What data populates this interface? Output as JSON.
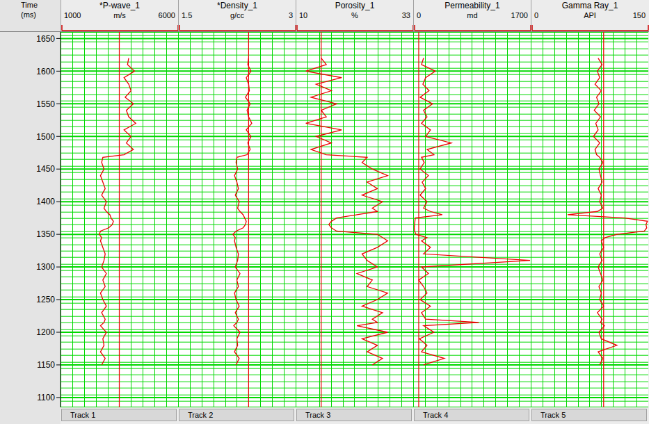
{
  "chart_data": {
    "type": "well_log",
    "y_label": "Time (ms)",
    "ylim": [
      1085,
      1660
    ],
    "yticks": [
      1100,
      1150,
      1200,
      1250,
      1300,
      1350,
      1400,
      1450,
      1500,
      1550,
      1600,
      1650
    ],
    "grid": true,
    "y": [
      1150,
      1160,
      1170,
      1180,
      1190,
      1200,
      1210,
      1215,
      1220,
      1230,
      1240,
      1250,
      1260,
      1270,
      1280,
      1290,
      1300,
      1310,
      1320,
      1330,
      1340,
      1345,
      1350,
      1355,
      1360,
      1365,
      1370,
      1375,
      1380,
      1385,
      1390,
      1400,
      1410,
      1420,
      1430,
      1440,
      1450,
      1460,
      1468,
      1472,
      1480,
      1490,
      1500,
      1510,
      1520,
      1530,
      1540,
      1550,
      1560,
      1570,
      1580,
      1590,
      1600,
      1610,
      1620
    ],
    "tracks": [
      {
        "type": "line",
        "title": "*P-wave_1",
        "x_label": "m/s",
        "xlim": [
          1000,
          6000
        ],
        "xticks": [
          1000,
          6000
        ],
        "reference": 3500,
        "footer": "Track 1",
        "color": "#ee0000",
        "values": [
          2750,
          2900,
          2700,
          2850,
          2800,
          2950,
          2700,
          2850,
          2900,
          2750,
          2950,
          2800,
          2700,
          2900,
          2800,
          2950,
          2750,
          2850,
          2900,
          2800,
          2700,
          2750,
          2650,
          2700,
          3050,
          3200,
          3250,
          3150,
          3100,
          2950,
          2850,
          2950,
          2750,
          2900,
          2800,
          2700,
          2850,
          2750,
          2800,
          3700,
          4100,
          3800,
          4000,
          3700,
          4200,
          3900,
          3800,
          4100,
          3750,
          4000,
          3900,
          3700,
          4150,
          3850,
          3900
        ]
      },
      {
        "type": "line",
        "title": "*Density_1",
        "x_label": "g/cc",
        "xlim": [
          1.5,
          3
        ],
        "xticks": [
          1.5,
          3
        ],
        "reference": 2.4,
        "footer": "Track 2",
        "color": "#ee0000",
        "values": [
          2.24,
          2.28,
          2.22,
          2.26,
          2.25,
          2.29,
          2.21,
          2.25,
          2.27,
          2.23,
          2.28,
          2.24,
          2.22,
          2.27,
          2.25,
          2.29,
          2.23,
          2.26,
          2.27,
          2.24,
          2.22,
          2.23,
          2.2,
          2.24,
          2.33,
          2.36,
          2.37,
          2.35,
          2.33,
          2.29,
          2.26,
          2.28,
          2.23,
          2.27,
          2.25,
          2.22,
          2.26,
          2.24,
          2.25,
          2.38,
          2.42,
          2.39,
          2.43,
          2.37,
          2.44,
          2.4,
          2.38,
          2.42,
          2.36,
          2.41,
          2.4,
          2.37,
          2.43,
          2.39,
          2.4
        ]
      },
      {
        "type": "line",
        "title": "Porosity_1",
        "x_label": "%",
        "xlim": [
          10,
          33
        ],
        "xticks": [
          10,
          33
        ],
        "reference": 15,
        "footer": "Track 3",
        "color": "#ee0000",
        "values": [
          25,
          27,
          24,
          26,
          23,
          28,
          22,
          26,
          25,
          27,
          23,
          26,
          28,
          24,
          25,
          22,
          26,
          24,
          23,
          26,
          28,
          27,
          26,
          18,
          17,
          16.5,
          17,
          18,
          22,
          26,
          25,
          27,
          23,
          26,
          24,
          28,
          25,
          23,
          24,
          16,
          13,
          17,
          14,
          19,
          12,
          16,
          15,
          18,
          13,
          17,
          14,
          19,
          12,
          16,
          15
        ]
      },
      {
        "type": "line",
        "title": "Permeability_1",
        "x_label": "md",
        "xlim": [
          0,
          1700
        ],
        "xticks": [
          0,
          1700
        ],
        "reference": 80,
        "footer": "Track 4",
        "color": "#ee0000",
        "values": [
          150,
          450,
          120,
          200,
          90,
          300,
          150,
          950,
          180,
          120,
          250,
          100,
          200,
          150,
          80,
          220,
          120,
          1690,
          150,
          250,
          120,
          200,
          40,
          20,
          15,
          20,
          25,
          30,
          420,
          250,
          150,
          200,
          100,
          180,
          130,
          220,
          100,
          160,
          120,
          300,
          200,
          550,
          180,
          250,
          120,
          200,
          150,
          280,
          100,
          230,
          140,
          180,
          320,
          120,
          150
        ]
      },
      {
        "type": "line",
        "title": "Gamma Ray_1",
        "x_label": "API",
        "xlim": [
          0,
          150
        ],
        "xticks": [
          0,
          150
        ],
        "reference": 93,
        "footer": "Track 5",
        "color": "#ee0000",
        "values": [
          88,
          92,
          86,
          110,
          90,
          87,
          94,
          89,
          91,
          85,
          93,
          88,
          90,
          87,
          92,
          89,
          86,
          91,
          88,
          93,
          90,
          95,
          110,
          145,
          148,
          147,
          149,
          120,
          47,
          85,
          92,
          88,
          90,
          86,
          91,
          89,
          87,
          92,
          88,
          84,
          82,
          88,
          80,
          86,
          83,
          89,
          81,
          87,
          84,
          90,
          82,
          88,
          85,
          91,
          86
        ]
      }
    ]
  }
}
